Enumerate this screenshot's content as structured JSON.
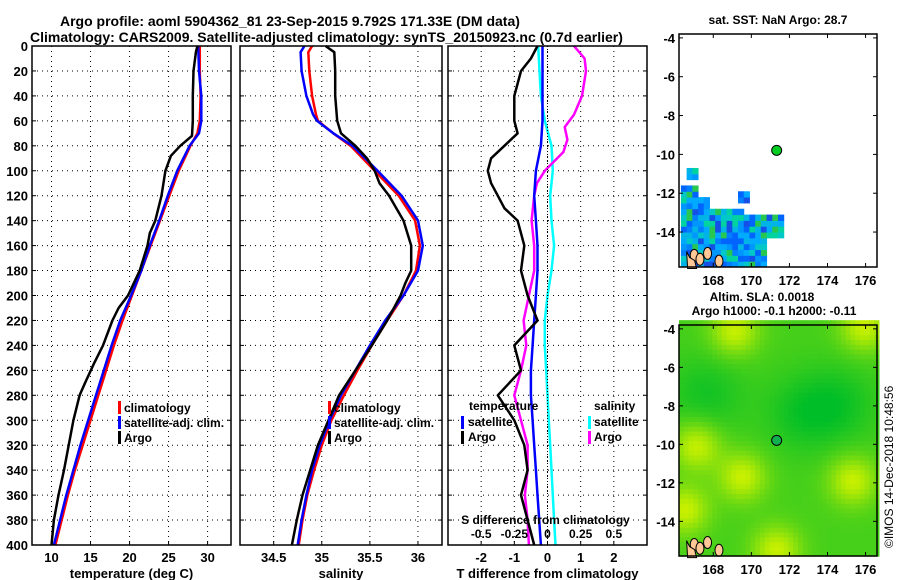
{
  "header": {
    "title_line1": "Argo profile: aoml 5904362_81 23-Sep-2015 9.792S 171.33E (DM data)",
    "title_line2": "Climatology: CARS2009. Satellite-adjusted climatology: synTS_20150923.nc (0.7d earlier)"
  },
  "colors": {
    "climatology": "#ff0000",
    "satellite": "#0000ff",
    "argo": "#000000",
    "sal_satellite": "#00ffff",
    "sal_argo": "#ff00ff",
    "sla_low": "#00c832",
    "sla_high": "#c8ff00"
  },
  "chart_data": [
    {
      "id": "temperature",
      "type": "line",
      "title": "",
      "xlabel": "temperature (deg C)",
      "ylabel": "",
      "xlim": [
        7.5,
        33
      ],
      "ylim": [
        400,
        0
      ],
      "xticks": [
        10,
        15,
        20,
        25,
        30
      ],
      "yticks": [
        0,
        20,
        40,
        60,
        80,
        100,
        120,
        140,
        160,
        180,
        200,
        220,
        240,
        260,
        280,
        300,
        320,
        340,
        360,
        380,
        400
      ],
      "grid": true,
      "legend": {
        "placement": "lower-right",
        "entries": [
          "climatology",
          "satellite-adj. clim.",
          "Argo"
        ]
      },
      "series": [
        {
          "name": "climatology",
          "color_key": "climatology",
          "depth": [
            0,
            20,
            40,
            60,
            70,
            80,
            100,
            120,
            140,
            160,
            180,
            200,
            220,
            240,
            260,
            280,
            300,
            320,
            340,
            360,
            380,
            400
          ],
          "values": [
            29.0,
            29.0,
            29.1,
            29.0,
            28.7,
            27.8,
            26.3,
            25.1,
            23.9,
            22.7,
            21.5,
            20.3,
            19.1,
            18.0,
            17.0,
            16.0,
            15.0,
            14.0,
            13.0,
            12.1,
            11.3,
            10.5
          ]
        },
        {
          "name": "satellite-adj. clim.",
          "color_key": "satellite",
          "depth": [
            0,
            20,
            40,
            60,
            70,
            80,
            100,
            120,
            140,
            160,
            180,
            200,
            220,
            240,
            260,
            280,
            300,
            320,
            340,
            360,
            380,
            400
          ],
          "values": [
            28.8,
            28.9,
            29.2,
            29.2,
            28.9,
            27.7,
            26.1,
            24.9,
            23.8,
            22.6,
            21.5,
            20.2,
            18.8,
            17.7,
            16.7,
            15.7,
            14.7,
            13.7,
            12.8,
            11.9,
            11.1,
            10.3
          ]
        },
        {
          "name": "Argo",
          "color_key": "argo",
          "depth": [
            0,
            5,
            20,
            40,
            60,
            72,
            80,
            88,
            100,
            120,
            140,
            150,
            160,
            180,
            200,
            210,
            220,
            240,
            255,
            270,
            280,
            300,
            320,
            340,
            360,
            380,
            400
          ],
          "values": [
            28.7,
            28.5,
            28.2,
            28.1,
            28.1,
            28.0,
            26.5,
            25.3,
            24.6,
            24.1,
            23.3,
            22.6,
            22.3,
            21.3,
            19.8,
            18.6,
            17.8,
            16.6,
            15.4,
            14.3,
            13.6,
            12.8,
            12.2,
            11.6,
            10.9,
            10.3,
            10.0
          ]
        }
      ]
    },
    {
      "id": "salinity",
      "type": "line",
      "title": "",
      "xlabel": "salinity",
      "ylabel": "",
      "xlim": [
        34.15,
        36.25
      ],
      "ylim": [
        400,
        0
      ],
      "xticks": [
        34.5,
        35,
        35.5,
        36
      ],
      "grid": true,
      "legend": {
        "placement": "lower-center",
        "entries": [
          "climatology",
          "satellite-adj. clim.",
          "Argo"
        ]
      },
      "series": [
        {
          "name": "climatology",
          "color_key": "climatology",
          "depth": [
            0,
            5,
            20,
            40,
            55,
            60,
            70,
            80,
            100,
            120,
            140,
            160,
            180,
            200,
            220,
            240,
            260,
            280,
            300,
            320,
            340,
            360,
            380,
            400
          ],
          "values": [
            34.9,
            34.86,
            34.87,
            34.9,
            34.94,
            34.96,
            35.12,
            35.3,
            35.55,
            35.8,
            35.97,
            36.02,
            35.98,
            35.85,
            35.68,
            35.52,
            35.37,
            35.23,
            35.1,
            35.0,
            34.92,
            34.85,
            34.8,
            34.76
          ]
        },
        {
          "name": "satellite-adj. clim.",
          "color_key": "satellite",
          "depth": [
            0,
            5,
            20,
            40,
            55,
            60,
            70,
            80,
            100,
            120,
            140,
            160,
            180,
            200,
            220,
            240,
            260,
            280,
            300,
            320,
            340,
            360,
            380,
            400
          ],
          "values": [
            34.82,
            34.78,
            34.79,
            34.84,
            34.91,
            34.95,
            35.12,
            35.32,
            35.58,
            35.83,
            36.0,
            36.05,
            36.0,
            35.85,
            35.66,
            35.5,
            35.35,
            35.2,
            35.08,
            34.98,
            34.9,
            34.84,
            34.79,
            34.75
          ]
        },
        {
          "name": "Argo",
          "color_key": "argo",
          "depth": [
            0,
            5,
            20,
            40,
            60,
            70,
            80,
            90,
            100,
            110,
            120,
            140,
            160,
            180,
            190,
            200,
            220,
            240,
            260,
            280,
            300,
            320,
            340,
            360,
            380,
            400
          ],
          "values": [
            35.04,
            35.13,
            35.14,
            35.14,
            35.16,
            35.2,
            35.35,
            35.47,
            35.55,
            35.6,
            35.7,
            35.85,
            35.93,
            35.93,
            35.87,
            35.82,
            35.68,
            35.52,
            35.35,
            35.18,
            35.07,
            34.96,
            34.88,
            34.8,
            34.74,
            34.69
          ]
        }
      ]
    },
    {
      "id": "difference",
      "type": "line",
      "title": "",
      "xlabel": "T difference from climatology",
      "x2label": "S difference from climatology",
      "ylabel": "",
      "xlim": [
        -3,
        3
      ],
      "ylim": [
        400,
        0
      ],
      "xticks": [
        -2,
        -1,
        0,
        1,
        2
      ],
      "x2ticks": [
        "-0.5",
        "-0.25",
        "0",
        "0.25",
        "0.5"
      ],
      "grid": true,
      "legend": {
        "placement": "lower",
        "groups": [
          {
            "title": "temperature",
            "entries": [
              "satellite",
              "Argo"
            ]
          },
          {
            "title": "salinity",
            "entries": [
              "satellite",
              "Argo"
            ]
          }
        ]
      },
      "series": [
        {
          "name": "temperature satellite",
          "color_key": "satellite",
          "depth": [
            0,
            60,
            80,
            100,
            120,
            140,
            160,
            180,
            200,
            220,
            240,
            260,
            280,
            300,
            320,
            340,
            360,
            380,
            400
          ],
          "values": [
            -0.15,
            -0.15,
            -0.2,
            -0.35,
            -0.4,
            -0.35,
            -0.3,
            -0.3,
            -0.35,
            -0.4,
            -0.45,
            -0.5,
            -0.5,
            -0.45,
            -0.4,
            -0.35,
            -0.3,
            -0.25,
            -0.2
          ]
        },
        {
          "name": "temperature Argo",
          "color_key": "argo",
          "depth": [
            0,
            10,
            20,
            40,
            60,
            70,
            80,
            90,
            100,
            110,
            120,
            130,
            140,
            160,
            180,
            200,
            220,
            240,
            260,
            280,
            300,
            320,
            340,
            360,
            380,
            400
          ],
          "values": [
            -0.3,
            -0.5,
            -0.8,
            -1.0,
            -1.0,
            -0.9,
            -1.3,
            -1.7,
            -1.8,
            -1.7,
            -1.5,
            -1.3,
            -0.9,
            -0.7,
            -0.8,
            -0.6,
            -0.3,
            -1.0,
            -0.8,
            -1.5,
            -1.0,
            -0.7,
            -0.6,
            -0.8,
            -0.6,
            -0.4
          ]
        }
      ],
      "series_salinity": [
        {
          "name": "salinity satellite",
          "color_key": "sal_satellite",
          "depth": [
            0,
            20,
            40,
            60,
            80,
            100,
            120,
            140,
            160,
            180,
            200,
            220,
            240,
            260,
            280,
            300,
            320,
            340,
            360,
            380,
            400
          ],
          "values": [
            -0.07,
            -0.06,
            -0.05,
            -0.02,
            0.03,
            0.04,
            0.02,
            0.03,
            0.05,
            0.03,
            0.0,
            -0.02,
            -0.02,
            -0.01,
            0.0,
            0.01,
            0.02,
            0.03,
            0.04,
            0.05,
            0.06
          ]
        },
        {
          "name": "salinity Argo",
          "color_key": "sal_argo",
          "depth": [
            0,
            10,
            20,
            40,
            55,
            65,
            75,
            85,
            100,
            110,
            120,
            140,
            160,
            180,
            200,
            220,
            240,
            260,
            280,
            300,
            320,
            340,
            360,
            380,
            400
          ],
          "values": [
            0.2,
            0.28,
            0.29,
            0.26,
            0.2,
            0.13,
            0.15,
            0.12,
            -0.02,
            -0.08,
            -0.1,
            -0.12,
            -0.1,
            -0.1,
            -0.14,
            -0.18,
            -0.16,
            -0.2,
            -0.25,
            -0.2,
            -0.15,
            -0.15,
            -0.17,
            -0.15,
            -0.14
          ]
        }
      ]
    },
    {
      "id": "sst-map",
      "type": "heatmap",
      "title": "sat. SST: NaN Argo: 28.7",
      "xticks": [
        168,
        170,
        172,
        174,
        176
      ],
      "yticks": [
        -4,
        -6,
        -8,
        -10,
        -12,
        -14
      ],
      "xlim": [
        166.2,
        176.6
      ],
      "ylim": [
        -15.8,
        -3.8
      ],
      "float_position": {
        "lon": 171.33,
        "lat": -9.792
      }
    },
    {
      "id": "sla-map",
      "type": "heatmap",
      "title": "Altim. SLA: 0.0018",
      "subtitle": "Argo h1000: -0.1 h2000: -0.11",
      "xticks": [
        168,
        170,
        172,
        174,
        176
      ],
      "yticks": [
        -4,
        -6,
        -8,
        -10,
        -12,
        -14
      ],
      "xlim": [
        166.2,
        176.6
      ],
      "ylim": [
        -15.8,
        -3.8
      ],
      "float_position": {
        "lon": 171.33,
        "lat": -9.792
      }
    }
  ],
  "footer": {
    "timestamp": "©IMOS 14-Dec-2018 10:48:56"
  }
}
